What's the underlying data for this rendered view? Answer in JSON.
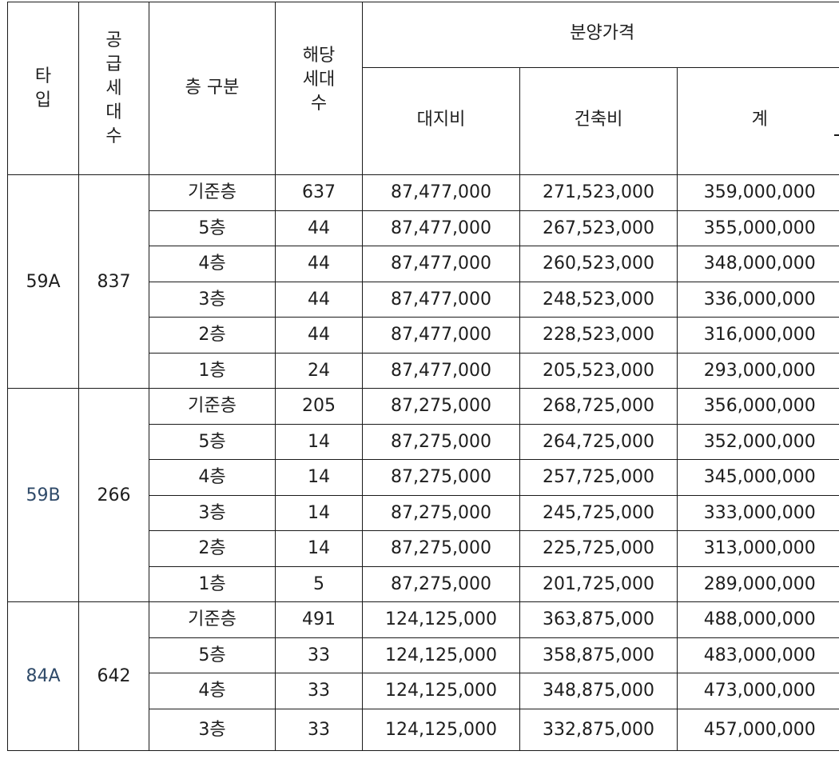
{
  "header": {
    "type": "타\n입",
    "supply": "공\n급\n세\n대\n수",
    "floor": "층 구분",
    "units": "해당\n세대\n수",
    "price_group": "분양가격",
    "land": "대지비",
    "build": "건축비",
    "total": "계"
  },
  "groups": [
    {
      "type": "59A",
      "supply": "837",
      "accent": false,
      "rows": [
        {
          "floor": "기준층",
          "units": "637",
          "land": "87,477,000",
          "build": "271,523,000",
          "total": "359,000,000"
        },
        {
          "floor": "5층",
          "units": "44",
          "land": "87,477,000",
          "build": "267,523,000",
          "total": "355,000,000"
        },
        {
          "floor": "4층",
          "units": "44",
          "land": "87,477,000",
          "build": "260,523,000",
          "total": "348,000,000"
        },
        {
          "floor": "3층",
          "units": "44",
          "land": "87,477,000",
          "build": "248,523,000",
          "total": "336,000,000"
        },
        {
          "floor": "2층",
          "units": "44",
          "land": "87,477,000",
          "build": "228,523,000",
          "total": "316,000,000"
        },
        {
          "floor": "1층",
          "units": "24",
          "land": "87,477,000",
          "build": "205,523,000",
          "total": "293,000,000"
        }
      ]
    },
    {
      "type": "59B",
      "supply": "266",
      "accent": true,
      "rows": [
        {
          "floor": "기준층",
          "units": "205",
          "land": "87,275,000",
          "build": "268,725,000",
          "total": "356,000,000"
        },
        {
          "floor": "5층",
          "units": "14",
          "land": "87,275,000",
          "build": "264,725,000",
          "total": "352,000,000"
        },
        {
          "floor": "4층",
          "units": "14",
          "land": "87,275,000",
          "build": "257,725,000",
          "total": "345,000,000"
        },
        {
          "floor": "3층",
          "units": "14",
          "land": "87,275,000",
          "build": "245,725,000",
          "total": "333,000,000"
        },
        {
          "floor": "2층",
          "units": "14",
          "land": "87,275,000",
          "build": "225,725,000",
          "total": "313,000,000"
        },
        {
          "floor": "1층",
          "units": "5",
          "land": "87,275,000",
          "build": "201,725,000",
          "total": "289,000,000"
        }
      ]
    },
    {
      "type": "84A",
      "supply": "642",
      "accent": true,
      "rows": [
        {
          "floor": "기준층",
          "units": "491",
          "land": "124,125,000",
          "build": "363,875,000",
          "total": "488,000,000"
        },
        {
          "floor": "5층",
          "units": "33",
          "land": "124,125,000",
          "build": "358,875,000",
          "total": "483,000,000"
        },
        {
          "floor": "4층",
          "units": "33",
          "land": "124,125,000",
          "build": "348,875,000",
          "total": "473,000,000"
        },
        {
          "floor": "3층",
          "units": "33",
          "land": "124,125,000",
          "build": "332,875,000",
          "total": "457,000,000"
        }
      ]
    }
  ],
  "colors": {
    "accent_type": "#2f4a69",
    "text": "#1e1e1e",
    "border": "#1a1a1a"
  }
}
